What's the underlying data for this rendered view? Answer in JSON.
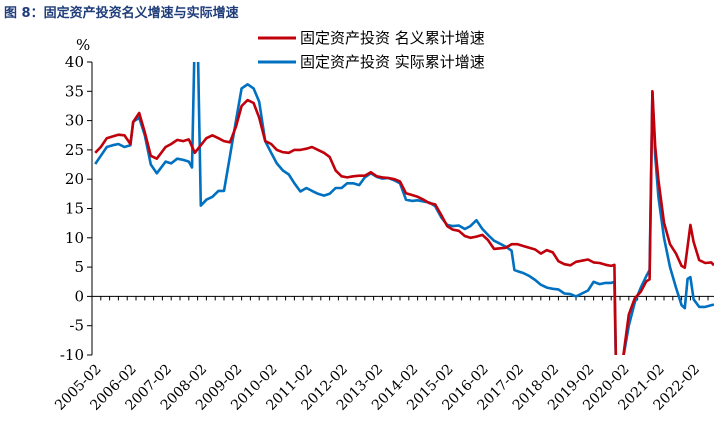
{
  "figure_title": "图 8：固定资产投资名义增速与实际增速",
  "chart_data": {
    "type": "line",
    "y_unit": "%",
    "ylim": [
      -10,
      40
    ],
    "yticks": [
      -10,
      -5,
      0,
      5,
      10,
      15,
      20,
      25,
      30,
      35,
      40
    ],
    "x_tick_labels": [
      "2005-02",
      "2006-02",
      "2007-02",
      "2008-02",
      "2009-02",
      "2010-02",
      "2011-02",
      "2012-02",
      "2013-02",
      "2014-02",
      "2015-02",
      "2016-02",
      "2017-02",
      "2018-02",
      "2019-02",
      "2020-02",
      "2021-02",
      "2022-02"
    ],
    "xlim": [
      2005.08,
      2022.75
    ],
    "legend_position": "top-right",
    "grid": false,
    "series": [
      {
        "name": "固定资产投资 名义累计增速",
        "color": "#c0000b",
        "points": [
          [
            2005.17,
            24.5
          ],
          [
            2005.33,
            25.5
          ],
          [
            2005.5,
            27.0
          ],
          [
            2005.67,
            27.3
          ],
          [
            2005.83,
            27.6
          ],
          [
            2006.0,
            27.5
          ],
          [
            2006.17,
            26.0
          ],
          [
            2006.25,
            29.8
          ],
          [
            2006.42,
            31.3
          ],
          [
            2006.58,
            28.0
          ],
          [
            2006.75,
            24.0
          ],
          [
            2006.92,
            23.5
          ],
          [
            2007.17,
            25.5
          ],
          [
            2007.33,
            26.0
          ],
          [
            2007.5,
            26.7
          ],
          [
            2007.67,
            26.5
          ],
          [
            2007.83,
            26.8
          ],
          [
            2008.0,
            24.5
          ],
          [
            2008.17,
            25.8
          ],
          [
            2008.33,
            27.0
          ],
          [
            2008.5,
            27.5
          ],
          [
            2008.67,
            27.0
          ],
          [
            2008.83,
            26.5
          ],
          [
            2009.0,
            26.3
          ],
          [
            2009.17,
            29.0
          ],
          [
            2009.33,
            32.5
          ],
          [
            2009.5,
            33.5
          ],
          [
            2009.67,
            33.0
          ],
          [
            2009.83,
            30.5
          ],
          [
            2010.0,
            26.5
          ],
          [
            2010.17,
            26.0
          ],
          [
            2010.33,
            25.0
          ],
          [
            2010.5,
            24.6
          ],
          [
            2010.67,
            24.5
          ],
          [
            2010.83,
            25.0
          ],
          [
            2011.0,
            25.0
          ],
          [
            2011.17,
            25.2
          ],
          [
            2011.33,
            25.5
          ],
          [
            2011.5,
            25.0
          ],
          [
            2011.67,
            24.5
          ],
          [
            2011.83,
            23.8
          ],
          [
            2012.0,
            21.5
          ],
          [
            2012.17,
            20.5
          ],
          [
            2012.33,
            20.3
          ],
          [
            2012.5,
            20.5
          ],
          [
            2012.67,
            20.6
          ],
          [
            2012.83,
            20.6
          ],
          [
            2013.0,
            21.2
          ],
          [
            2013.17,
            20.5
          ],
          [
            2013.33,
            20.3
          ],
          [
            2013.5,
            20.2
          ],
          [
            2013.67,
            20.0
          ],
          [
            2013.83,
            19.6
          ],
          [
            2014.0,
            17.6
          ],
          [
            2014.17,
            17.3
          ],
          [
            2014.33,
            17.0
          ],
          [
            2014.5,
            16.5
          ],
          [
            2014.67,
            15.9
          ],
          [
            2014.83,
            15.7
          ],
          [
            2015.0,
            13.9
          ],
          [
            2015.17,
            12.0
          ],
          [
            2015.33,
            11.4
          ],
          [
            2015.5,
            11.2
          ],
          [
            2015.67,
            10.3
          ],
          [
            2015.83,
            10.0
          ],
          [
            2016.0,
            10.2
          ],
          [
            2016.17,
            10.5
          ],
          [
            2016.33,
            9.6
          ],
          [
            2016.5,
            8.1
          ],
          [
            2016.67,
            8.2
          ],
          [
            2016.83,
            8.3
          ],
          [
            2017.0,
            8.9
          ],
          [
            2017.17,
            8.9
          ],
          [
            2017.33,
            8.6
          ],
          [
            2017.5,
            8.3
          ],
          [
            2017.67,
            8.0
          ],
          [
            2017.83,
            7.3
          ],
          [
            2018.0,
            7.9
          ],
          [
            2018.17,
            7.5
          ],
          [
            2018.33,
            6.0
          ],
          [
            2018.5,
            5.5
          ],
          [
            2018.67,
            5.3
          ],
          [
            2018.83,
            5.9
          ],
          [
            2019.0,
            6.1
          ],
          [
            2019.17,
            6.3
          ],
          [
            2019.33,
            5.8
          ],
          [
            2019.5,
            5.7
          ],
          [
            2019.67,
            5.4
          ],
          [
            2019.83,
            5.2
          ],
          [
            2019.92,
            5.4
          ],
          [
            2020.0,
            -24.5
          ],
          [
            2020.17,
            -10.3
          ],
          [
            2020.33,
            -3.1
          ],
          [
            2020.5,
            -0.3
          ],
          [
            2020.67,
            0.8
          ],
          [
            2020.83,
            2.6
          ],
          [
            2020.92,
            2.9
          ],
          [
            2021.0,
            35.0
          ],
          [
            2021.08,
            25.6
          ],
          [
            2021.17,
            19.9
          ],
          [
            2021.33,
            12.6
          ],
          [
            2021.5,
            8.9
          ],
          [
            2021.67,
            7.3
          ],
          [
            2021.83,
            5.2
          ],
          [
            2021.92,
            4.9
          ],
          [
            2022.0,
            8.5
          ],
          [
            2022.08,
            12.2
          ],
          [
            2022.17,
            9.3
          ],
          [
            2022.33,
            6.2
          ],
          [
            2022.5,
            5.7
          ],
          [
            2022.67,
            5.8
          ],
          [
            2022.75,
            5.3
          ]
        ]
      },
      {
        "name": "固定资产投资 实际累计增速",
        "color": "#0070c0",
        "points": [
          [
            2005.17,
            22.6
          ],
          [
            2005.33,
            24.0
          ],
          [
            2005.5,
            25.5
          ],
          [
            2005.67,
            25.8
          ],
          [
            2005.83,
            26.0
          ],
          [
            2006.0,
            25.5
          ],
          [
            2006.17,
            25.8
          ],
          [
            2006.25,
            29.8
          ],
          [
            2006.42,
            30.5
          ],
          [
            2006.58,
            27.5
          ],
          [
            2006.75,
            22.5
          ],
          [
            2006.92,
            21.0
          ],
          [
            2007.17,
            23.0
          ],
          [
            2007.33,
            22.7
          ],
          [
            2007.5,
            23.5
          ],
          [
            2007.67,
            23.3
          ],
          [
            2007.83,
            23.0
          ],
          [
            2007.92,
            22.0
          ],
          [
            2008.0,
            45.0
          ],
          [
            2008.08,
            45.0
          ],
          [
            2008.17,
            15.5
          ],
          [
            2008.33,
            16.5
          ],
          [
            2008.5,
            17.0
          ],
          [
            2008.67,
            18.0
          ],
          [
            2008.83,
            18.0
          ],
          [
            2009.0,
            24.0
          ],
          [
            2009.17,
            30.0
          ],
          [
            2009.33,
            35.5
          ],
          [
            2009.5,
            36.2
          ],
          [
            2009.67,
            35.5
          ],
          [
            2009.83,
            33.2
          ],
          [
            2010.0,
            26.5
          ],
          [
            2010.17,
            24.5
          ],
          [
            2010.33,
            22.7
          ],
          [
            2010.5,
            21.5
          ],
          [
            2010.67,
            20.8
          ],
          [
            2010.83,
            19.3
          ],
          [
            2011.0,
            17.9
          ],
          [
            2011.17,
            18.5
          ],
          [
            2011.33,
            18.0
          ],
          [
            2011.5,
            17.5
          ],
          [
            2011.67,
            17.2
          ],
          [
            2011.83,
            17.5
          ],
          [
            2012.0,
            18.5
          ],
          [
            2012.17,
            18.5
          ],
          [
            2012.33,
            19.3
          ],
          [
            2012.5,
            19.3
          ],
          [
            2012.67,
            19.0
          ],
          [
            2012.83,
            20.3
          ],
          [
            2013.0,
            21.0
          ],
          [
            2013.17,
            20.4
          ],
          [
            2013.33,
            20.1
          ],
          [
            2013.5,
            20.2
          ],
          [
            2013.67,
            19.8
          ],
          [
            2013.83,
            19.3
          ],
          [
            2014.0,
            16.5
          ],
          [
            2014.17,
            16.3
          ],
          [
            2014.33,
            16.4
          ],
          [
            2014.5,
            16.2
          ],
          [
            2014.67,
            16.0
          ],
          [
            2014.83,
            15.4
          ],
          [
            2015.0,
            13.5
          ],
          [
            2015.17,
            12.2
          ],
          [
            2015.33,
            12.0
          ],
          [
            2015.5,
            12.1
          ],
          [
            2015.67,
            11.5
          ],
          [
            2015.83,
            12.0
          ],
          [
            2016.0,
            13.0
          ],
          [
            2016.17,
            11.5
          ],
          [
            2016.33,
            10.5
          ],
          [
            2016.5,
            9.5
          ],
          [
            2016.67,
            9.0
          ],
          [
            2016.83,
            8.5
          ],
          [
            2017.0,
            7.8
          ],
          [
            2017.08,
            4.5
          ],
          [
            2017.17,
            4.3
          ],
          [
            2017.33,
            4.0
          ],
          [
            2017.5,
            3.5
          ],
          [
            2017.67,
            2.8
          ],
          [
            2017.83,
            2.0
          ],
          [
            2018.0,
            1.5
          ],
          [
            2018.17,
            1.3
          ],
          [
            2018.33,
            1.2
          ],
          [
            2018.5,
            0.5
          ],
          [
            2018.67,
            0.4
          ],
          [
            2018.83,
            0.0
          ],
          [
            2019.0,
            0.5
          ],
          [
            2019.17,
            1.0
          ],
          [
            2019.33,
            2.5
          ],
          [
            2019.5,
            2.1
          ],
          [
            2019.67,
            2.3
          ],
          [
            2019.83,
            2.3
          ],
          [
            2019.92,
            2.5
          ],
          [
            2020.0,
            -24.5
          ],
          [
            2020.17,
            -10.5
          ],
          [
            2020.33,
            -5.0
          ],
          [
            2020.5,
            -1.0
          ],
          [
            2020.67,
            1.5
          ],
          [
            2020.83,
            3.5
          ],
          [
            2020.92,
            4.5
          ],
          [
            2021.0,
            35.0
          ],
          [
            2021.08,
            24.0
          ],
          [
            2021.17,
            17.0
          ],
          [
            2021.33,
            10.0
          ],
          [
            2021.5,
            5.0
          ],
          [
            2021.67,
            1.5
          ],
          [
            2021.83,
            -1.5
          ],
          [
            2021.92,
            -2.0
          ],
          [
            2022.0,
            3.0
          ],
          [
            2022.08,
            3.3
          ],
          [
            2022.17,
            -0.5
          ],
          [
            2022.33,
            -1.8
          ],
          [
            2022.5,
            -1.8
          ],
          [
            2022.67,
            -1.5
          ],
          [
            2022.75,
            -1.4
          ]
        ]
      }
    ]
  }
}
